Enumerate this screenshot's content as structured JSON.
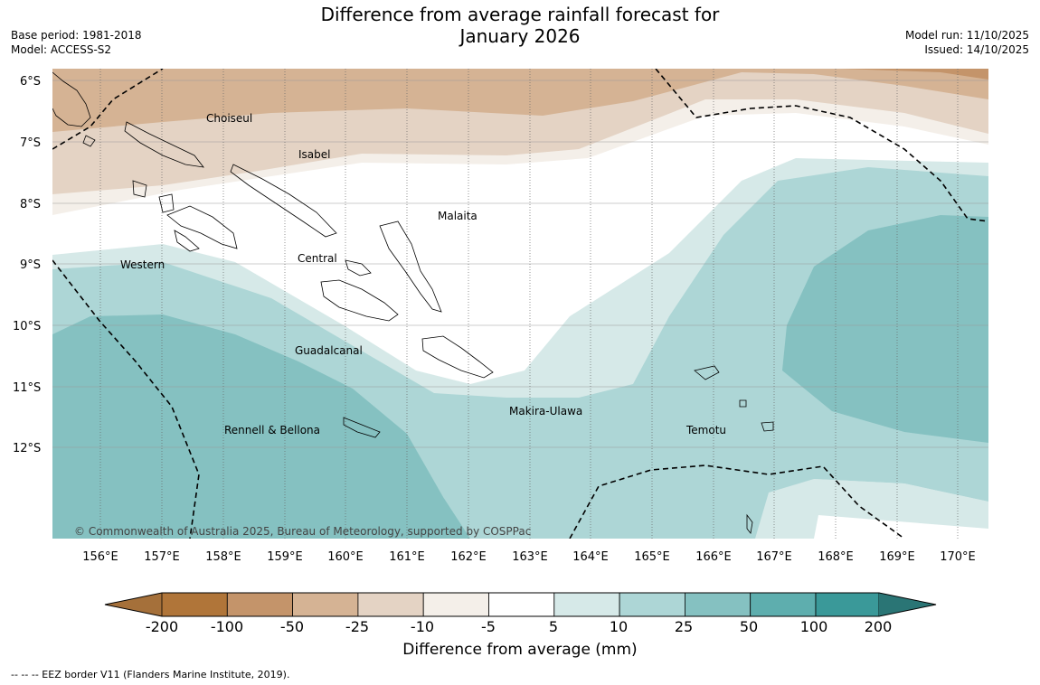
{
  "title": {
    "line1": "Difference from average rainfall forecast for",
    "line2": "January 2026"
  },
  "meta_left": {
    "base_period": "Base period: 1981-2018",
    "model": "Model: ACCESS-S2"
  },
  "meta_right": {
    "model_run": "Model run: 11/10/2025",
    "issued": "Issued: 14/10/2025"
  },
  "map": {
    "lat_labels": [
      "6°S",
      "7°S",
      "8°S",
      "9°S",
      "10°S",
      "11°S",
      "12°S"
    ],
    "lon_labels": [
      "156°E",
      "157°E",
      "158°E",
      "159°E",
      "160°E",
      "161°E",
      "162°E",
      "163°E",
      "164°E",
      "165°E",
      "166°E",
      "167°E",
      "168°E",
      "169°E",
      "170°E"
    ],
    "regions": [
      "Choiseul",
      "Isabel",
      "Malaita",
      "Western",
      "Central",
      "Guadalcanal",
      "Makira-Ulawa",
      "Rennell & Bellona",
      "Temotu"
    ],
    "copyright": "© Commonwealth of Australia 2025, Bureau of Meteorology, supported by COSPPac"
  },
  "colorbar": {
    "ticks": [
      "-200",
      "-100",
      "-50",
      "-25",
      "-10",
      "-5",
      "5",
      "10",
      "25",
      "50",
      "100",
      "200"
    ],
    "colors": [
      "#a5703a",
      "#b07539",
      "#c4946a",
      "#d5b394",
      "#e4d3c4",
      "#f4efe9",
      "#ffffff",
      "#d6e9e8",
      "#add6d6",
      "#85c1c1",
      "#5eaeae",
      "#3a9999",
      "#2a7575"
    ],
    "title": "Difference from average (mm)"
  },
  "footnote": "--  --  -- EEZ border V11 (Flanders Marine Institute, 2019)."
}
